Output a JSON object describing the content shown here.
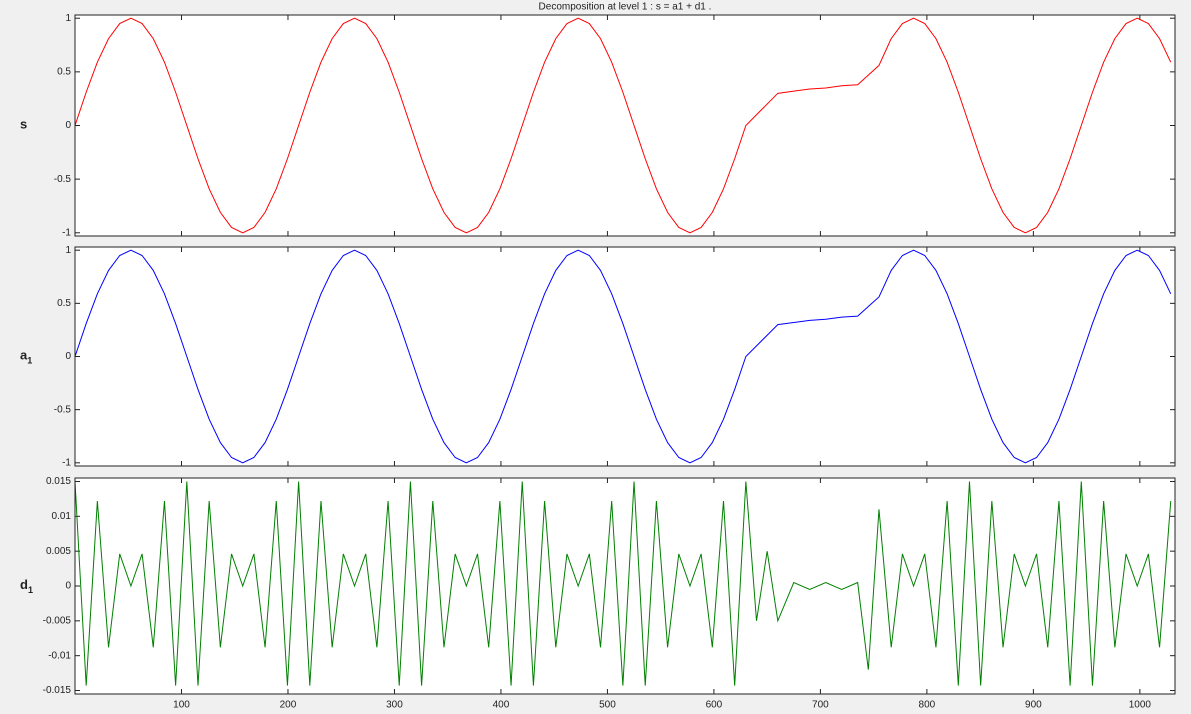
{
  "chart_data": [
    {
      "type": "line",
      "title": "Decomposition at level 1 : s = a1 + d1 .",
      "ylabel": "s",
      "show_xtick_labels": false,
      "x": [
        0,
        10.5,
        21,
        31.5,
        42,
        52.5,
        63,
        73.5,
        84,
        94.5,
        105,
        115.5,
        126,
        136.5,
        147,
        157.5,
        168,
        178.5,
        189,
        199.5,
        210,
        220.5,
        231,
        241.5,
        252,
        262.5,
        273,
        283.5,
        294,
        304.5,
        315,
        325.5,
        336,
        346.5,
        357,
        367.5,
        378,
        388.5,
        399,
        409.5,
        420,
        430.5,
        441,
        451.5,
        462,
        472.5,
        483,
        493.5,
        504,
        514.5,
        525,
        535.5,
        546,
        556.5,
        567,
        577.5,
        588,
        598.5,
        609,
        619.5,
        630,
        640,
        650,
        660,
        675,
        690,
        705,
        720,
        735,
        745,
        755,
        766.5,
        777,
        787.5,
        798,
        808.5,
        819,
        829.5,
        840,
        850.5,
        861,
        871.5,
        882,
        892.5,
        903,
        913.5,
        924,
        934.5,
        945,
        955.5,
        966,
        976.5,
        987,
        997.5,
        1008,
        1018.5,
        1029
      ],
      "series": [
        {
          "color": "#ff0000",
          "values": [
            0,
            0.31,
            0.59,
            0.81,
            0.95,
            1,
            0.95,
            0.81,
            0.59,
            0.31,
            0,
            -0.31,
            -0.59,
            -0.81,
            -0.95,
            -1,
            -0.95,
            -0.81,
            -0.59,
            -0.31,
            0,
            0.31,
            0.59,
            0.81,
            0.95,
            1,
            0.95,
            0.81,
            0.59,
            0.31,
            0,
            -0.31,
            -0.59,
            -0.81,
            -0.95,
            -1,
            -0.95,
            -0.81,
            -0.59,
            -0.31,
            0,
            0.31,
            0.59,
            0.81,
            0.95,
            1,
            0.95,
            0.81,
            0.59,
            0.31,
            0,
            -0.31,
            -0.59,
            -0.81,
            -0.95,
            -1,
            -0.95,
            -0.81,
            -0.59,
            -0.31,
            0,
            0.1,
            0.2,
            0.3,
            0.32,
            0.34,
            0.35,
            0.37,
            0.38,
            0.47,
            0.56,
            0.81,
            0.95,
            1,
            0.95,
            0.81,
            0.59,
            0.31,
            0,
            -0.31,
            -0.59,
            -0.81,
            -0.95,
            -1,
            -0.95,
            -0.81,
            -0.59,
            -0.31,
            0,
            0.31,
            0.59,
            0.81,
            0.95,
            1,
            0.95,
            0.81,
            0.59
          ]
        }
      ],
      "xlim": [
        0,
        1033
      ],
      "xticks": [
        100,
        200,
        300,
        400,
        500,
        600,
        700,
        800,
        900,
        1000
      ],
      "ylim": [
        -1.03,
        1.03
      ],
      "yticks": [
        -1,
        -0.5,
        0,
        0.5,
        1
      ]
    },
    {
      "type": "line",
      "ylabel": "a",
      "ylabel_sub": "1",
      "show_xtick_labels": false,
      "x": [
        0,
        10.5,
        21,
        31.5,
        42,
        52.5,
        63,
        73.5,
        84,
        94.5,
        105,
        115.5,
        126,
        136.5,
        147,
        157.5,
        168,
        178.5,
        189,
        199.5,
        210,
        220.5,
        231,
        241.5,
        252,
        262.5,
        273,
        283.5,
        294,
        304.5,
        315,
        325.5,
        336,
        346.5,
        357,
        367.5,
        378,
        388.5,
        399,
        409.5,
        420,
        430.5,
        441,
        451.5,
        462,
        472.5,
        483,
        493.5,
        504,
        514.5,
        525,
        535.5,
        546,
        556.5,
        567,
        577.5,
        588,
        598.5,
        609,
        619.5,
        630,
        640,
        650,
        660,
        675,
        690,
        705,
        720,
        735,
        745,
        755,
        766.5,
        777,
        787.5,
        798,
        808.5,
        819,
        829.5,
        840,
        850.5,
        861,
        871.5,
        882,
        892.5,
        903,
        913.5,
        924,
        934.5,
        945,
        955.5,
        966,
        976.5,
        987,
        997.5,
        1008,
        1018.5,
        1029
      ],
      "series": [
        {
          "color": "#0000ff",
          "values": [
            0,
            0.31,
            0.59,
            0.81,
            0.95,
            1,
            0.95,
            0.81,
            0.59,
            0.31,
            0,
            -0.31,
            -0.59,
            -0.81,
            -0.95,
            -1,
            -0.95,
            -0.81,
            -0.59,
            -0.31,
            0,
            0.31,
            0.59,
            0.81,
            0.95,
            1,
            0.95,
            0.81,
            0.59,
            0.31,
            0,
            -0.31,
            -0.59,
            -0.81,
            -0.95,
            -1,
            -0.95,
            -0.81,
            -0.59,
            -0.31,
            0,
            0.31,
            0.59,
            0.81,
            0.95,
            1,
            0.95,
            0.81,
            0.59,
            0.31,
            0,
            -0.31,
            -0.59,
            -0.81,
            -0.95,
            -1,
            -0.95,
            -0.81,
            -0.59,
            -0.31,
            0,
            0.1,
            0.2,
            0.3,
            0.32,
            0.34,
            0.35,
            0.37,
            0.38,
            0.47,
            0.56,
            0.81,
            0.95,
            1,
            0.95,
            0.81,
            0.59,
            0.31,
            0,
            -0.31,
            -0.59,
            -0.81,
            -0.95,
            -1,
            -0.95,
            -0.81,
            -0.59,
            -0.31,
            0,
            0.31,
            0.59,
            0.81,
            0.95,
            1,
            0.95,
            0.81,
            0.59
          ]
        }
      ],
      "xlim": [
        0,
        1033
      ],
      "xticks": [
        100,
        200,
        300,
        400,
        500,
        600,
        700,
        800,
        900,
        1000
      ],
      "ylim": [
        -1.03,
        1.03
      ],
      "yticks": [
        -1,
        -0.5,
        0,
        0.5,
        1
      ]
    },
    {
      "type": "line",
      "ylabel": "d",
      "ylabel_sub": "1",
      "show_xtick_labels": true,
      "x": [
        0,
        10.5,
        21,
        31.5,
        42,
        52.5,
        63,
        73.5,
        84,
        94.5,
        105,
        115.5,
        126,
        136.5,
        147,
        157.5,
        168,
        178.5,
        189,
        199.5,
        210,
        220.5,
        231,
        241.5,
        252,
        262.5,
        273,
        283.5,
        294,
        304.5,
        315,
        325.5,
        336,
        346.5,
        357,
        367.5,
        378,
        388.5,
        399,
        409.5,
        420,
        430.5,
        441,
        451.5,
        462,
        472.5,
        483,
        493.5,
        504,
        514.5,
        525,
        535.5,
        546,
        556.5,
        567,
        577.5,
        588,
        598.5,
        609,
        619.5,
        630,
        640,
        650,
        660,
        675,
        690,
        705,
        720,
        735,
        745,
        755,
        766.5,
        777,
        787.5,
        798,
        808.5,
        819,
        829.5,
        840,
        850.5,
        861,
        871.5,
        882,
        892.5,
        903,
        913.5,
        924,
        934.5,
        945,
        955.5,
        966,
        976.5,
        987,
        997.5,
        1008,
        1018.5,
        1029
      ],
      "series": [
        {
          "color": "#008000",
          "values": [
            0.015,
            -0.0143,
            0.0122,
            -0.0088,
            0.0046,
            0,
            0.0046,
            -0.0088,
            0.0122,
            -0.0143,
            0.015,
            -0.0143,
            0.0122,
            -0.0088,
            0.0046,
            0,
            0.0046,
            -0.0088,
            0.0122,
            -0.0143,
            0.015,
            -0.0143,
            0.0122,
            -0.0088,
            0.0046,
            0,
            0.0046,
            -0.0088,
            0.0122,
            -0.0143,
            0.015,
            -0.0143,
            0.0122,
            -0.0088,
            0.0046,
            0,
            0.0046,
            -0.0088,
            0.0122,
            -0.0143,
            0.015,
            -0.0143,
            0.0122,
            -0.0088,
            0.0046,
            0,
            0.0046,
            -0.0088,
            0.0122,
            -0.0143,
            0.015,
            -0.0143,
            0.0122,
            -0.0088,
            0.0046,
            0,
            0.0046,
            -0.0088,
            0.0122,
            -0.0143,
            0.015,
            -0.005,
            0.005,
            -0.005,
            0.0005,
            -0.0005,
            0.0005,
            -0.0005,
            0.0005,
            -0.012,
            0.011,
            -0.0088,
            0.0046,
            0,
            0.0046,
            -0.0088,
            0.0122,
            -0.0143,
            0.015,
            -0.0143,
            0.0122,
            -0.0088,
            0.0046,
            0,
            0.0046,
            -0.0088,
            0.0122,
            -0.0143,
            0.015,
            -0.0143,
            0.0122,
            -0.0088,
            0.0046,
            0,
            0.0046,
            -0.0088,
            0.0122
          ]
        }
      ],
      "xlim": [
        0,
        1033
      ],
      "xticks": [
        100,
        200,
        300,
        400,
        500,
        600,
        700,
        800,
        900,
        1000
      ],
      "ylim": [
        -0.0155,
        0.0155
      ],
      "yticks": [
        -0.015,
        -0.01,
        -0.005,
        0,
        0.005,
        0.01,
        0.015
      ]
    }
  ]
}
